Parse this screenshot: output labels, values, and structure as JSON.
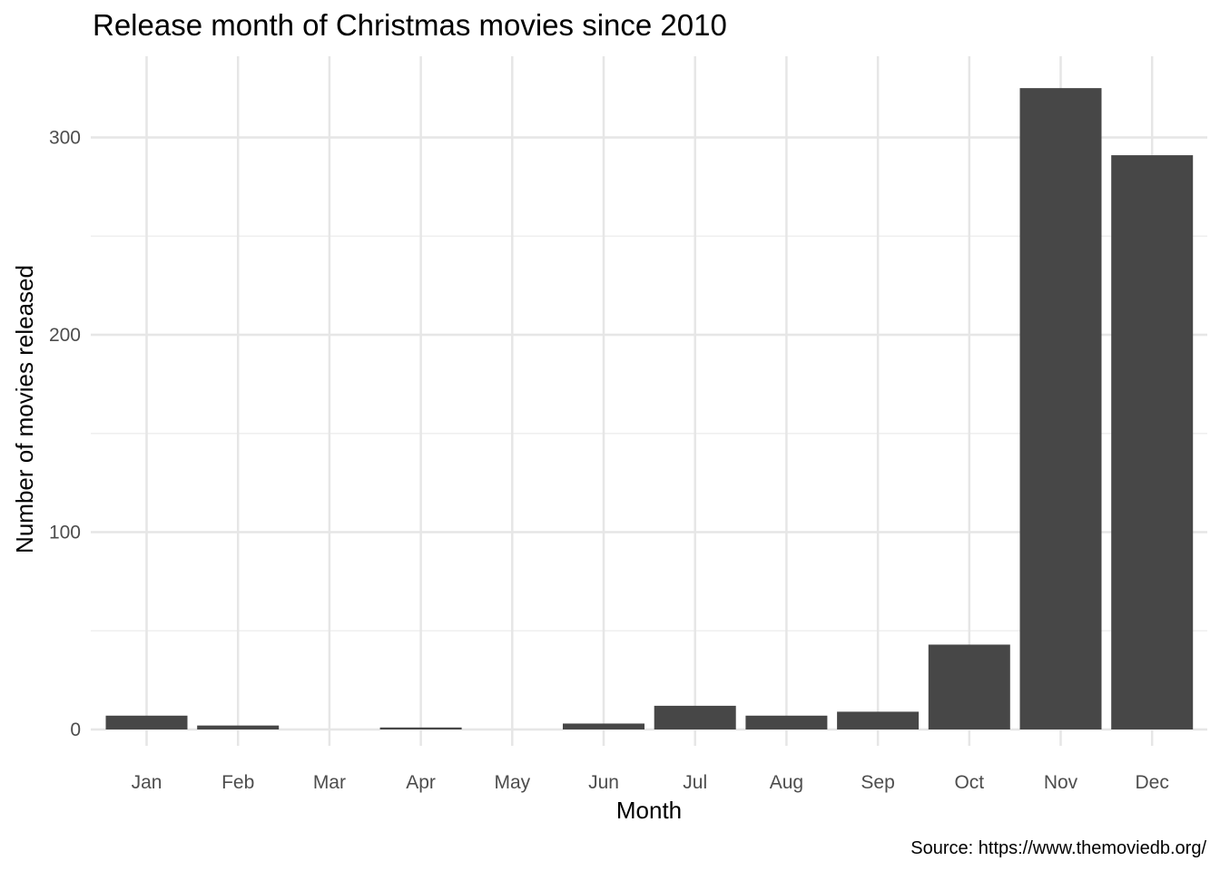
{
  "chart_data": {
    "type": "bar",
    "title": "Release month of Christmas movies since 2010",
    "xlabel": "Month",
    "ylabel": "Number of movies released",
    "caption": "Source: https://www.themoviedb.org/",
    "categories": [
      "Jan",
      "Feb",
      "Mar",
      "Apr",
      "May",
      "Jun",
      "Jul",
      "Aug",
      "Sep",
      "Oct",
      "Nov",
      "Dec"
    ],
    "values": [
      7,
      2,
      0,
      1,
      0,
      3,
      12,
      7,
      9,
      43,
      325,
      291
    ],
    "ylim": [
      0,
      340
    ],
    "y_ticks": [
      0,
      100,
      200,
      300
    ],
    "bar_color": "#474747",
    "grid": true,
    "legend": "none"
  }
}
